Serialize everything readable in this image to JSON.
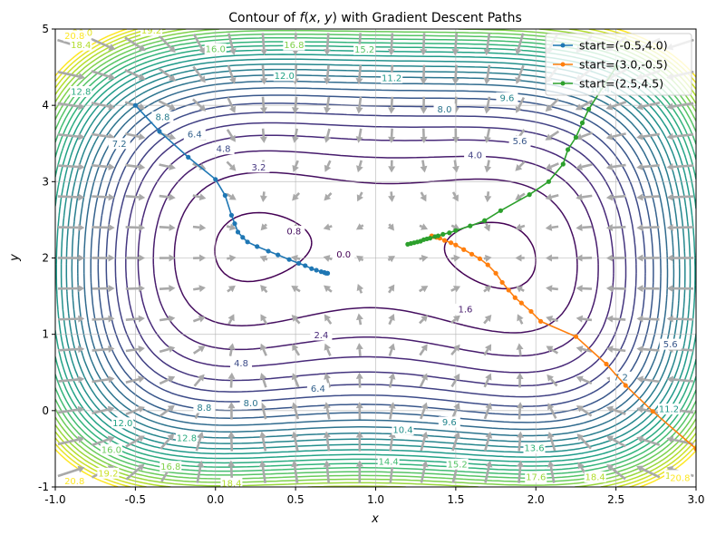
{
  "chart_data": {
    "type": "contour",
    "title": "Contour of f(x, y) with Gradient Descent Paths",
    "title_parts": [
      "Contour of ",
      "f",
      "(",
      "x",
      ", ",
      "y",
      ")",
      " with Gradient Descent Paths"
    ],
    "xlabel": "x",
    "ylabel": "y",
    "xlim": [
      -1.0,
      3.0
    ],
    "ylim": [
      -1.0,
      5.0
    ],
    "xticks": [
      -1.0,
      -0.5,
      0.0,
      0.5,
      1.0,
      1.5,
      2.0,
      2.5,
      3.0
    ],
    "yticks": [
      -1,
      0,
      1,
      2,
      3,
      4,
      5
    ],
    "xtick_labels": [
      "-1.0",
      "-0.5",
      "0.0",
      "0.5",
      "1.0",
      "1.5",
      "2.0",
      "2.5",
      "3.0"
    ],
    "ytick_labels": [
      "-1",
      "0",
      "1",
      "2",
      "3",
      "4",
      "5"
    ],
    "grid": true,
    "legend_position": "top-right",
    "contour_levels": [
      0.0,
      0.8,
      1.6,
      2.4,
      3.2,
      4.0,
      4.8,
      5.6,
      6.4,
      7.2,
      8.0,
      8.8,
      9.6,
      10.4,
      11.2,
      12.0,
      12.8,
      13.6,
      14.4,
      15.2,
      16.0,
      16.8,
      17.6,
      18.4,
      19.2,
      20.0,
      20.8
    ],
    "contour_labels": [
      {
        "text": "0.0",
        "x": 0.8,
        "y": 2.05
      },
      {
        "text": "0.8",
        "x": 0.49,
        "y": 2.35
      },
      {
        "text": "1.6",
        "x": 1.56,
        "y": 1.33
      },
      {
        "text": "2.4",
        "x": 0.66,
        "y": 0.99
      },
      {
        "text": "3.2",
        "x": 0.27,
        "y": 3.19
      },
      {
        "text": "4.0",
        "x": 1.62,
        "y": 3.35
      },
      {
        "text": "4.8",
        "x": 0.05,
        "y": 3.43
      },
      {
        "text": "4.8",
        "x": 0.16,
        "y": 0.62
      },
      {
        "text": "5.6",
        "x": 1.9,
        "y": 3.53
      },
      {
        "text": "5.6",
        "x": 2.84,
        "y": 0.87
      },
      {
        "text": "6.4",
        "x": -0.13,
        "y": 3.62
      },
      {
        "text": "6.4",
        "x": 0.64,
        "y": 0.29
      },
      {
        "text": "7.2",
        "x": -0.6,
        "y": 3.5
      },
      {
        "text": "7.2",
        "x": 2.53,
        "y": 0.44
      },
      {
        "text": "8.0",
        "x": 1.43,
        "y": 3.95
      },
      {
        "text": "8.0",
        "x": 0.22,
        "y": 0.1
      },
      {
        "text": "8.8",
        "x": -0.33,
        "y": 3.85
      },
      {
        "text": "8.8",
        "x": -0.07,
        "y": 0.04
      },
      {
        "text": "9.6",
        "x": 1.82,
        "y": 4.1
      },
      {
        "text": "9.6",
        "x": 1.46,
        "y": -0.15
      },
      {
        "text": "10.4",
        "x": 1.17,
        "y": -0.25
      },
      {
        "text": "10.4",
        "x": 2.4,
        "y": 4.21
      },
      {
        "text": "11.2",
        "x": 1.1,
        "y": 4.36
      },
      {
        "text": "11.2",
        "x": 2.83,
        "y": 0.02
      },
      {
        "text": "12.0",
        "x": 0.43,
        "y": 4.39
      },
      {
        "text": "12.0",
        "x": -0.58,
        "y": -0.16
      },
      {
        "text": "12.8",
        "x": -0.84,
        "y": 4.18
      },
      {
        "text": "12.8",
        "x": -0.18,
        "y": -0.36
      },
      {
        "text": "13.6",
        "x": 1.99,
        "y": -0.49
      },
      {
        "text": "14.4",
        "x": 1.08,
        "y": -0.67
      },
      {
        "text": "15.2",
        "x": 0.93,
        "y": 4.73
      },
      {
        "text": "15.2",
        "x": 1.51,
        "y": -0.7
      },
      {
        "text": "16.0",
        "x": 0.0,
        "y": 4.74
      },
      {
        "text": "16.0",
        "x": -0.65,
        "y": -0.51
      },
      {
        "text": "16.8",
        "x": 0.49,
        "y": 4.79
      },
      {
        "text": "16.8",
        "x": -0.28,
        "y": -0.73
      },
      {
        "text": "17.6",
        "x": 2.0,
        "y": -0.87
      },
      {
        "text": "18.4",
        "x": -0.84,
        "y": 4.79
      },
      {
        "text": "18.4",
        "x": 2.37,
        "y": -0.87
      },
      {
        "text": "18.4",
        "x": 0.1,
        "y": -0.95
      },
      {
        "text": "19.2",
        "x": -0.4,
        "y": 4.98
      },
      {
        "text": "19.2",
        "x": -0.67,
        "y": -0.82
      },
      {
        "text": "19.2",
        "x": 2.87,
        "y": -0.85
      },
      {
        "text": "20.0",
        "x": -0.83,
        "y": 4.95
      },
      {
        "text": "20.8",
        "x": -0.88,
        "y": 4.91
      },
      {
        "text": "20.8",
        "x": -0.88,
        "y": -0.92
      },
      {
        "text": "20.8",
        "x": 2.9,
        "y": -0.88
      }
    ],
    "series": [
      {
        "name": "start=(-0.5,4.0)",
        "color": "#1f77b4",
        "points": [
          [
            -0.5,
            4.0
          ],
          [
            -0.35,
            3.66
          ],
          [
            -0.17,
            3.32
          ],
          [
            0.0,
            3.03
          ],
          [
            0.06,
            2.82
          ],
          [
            0.1,
            2.56
          ],
          [
            0.12,
            2.45
          ],
          [
            0.14,
            2.34
          ],
          [
            0.17,
            2.27
          ],
          [
            0.2,
            2.21
          ],
          [
            0.26,
            2.15
          ],
          [
            0.33,
            2.09
          ],
          [
            0.39,
            2.04
          ],
          [
            0.46,
            1.98
          ],
          [
            0.52,
            1.93
          ],
          [
            0.56,
            1.9
          ],
          [
            0.6,
            1.86
          ],
          [
            0.63,
            1.84
          ],
          [
            0.66,
            1.82
          ],
          [
            0.68,
            1.81
          ],
          [
            0.69,
            1.8
          ],
          [
            0.7,
            1.8
          ],
          [
            0.7,
            1.8
          ]
        ]
      },
      {
        "name": "start=(3.0,-0.5)",
        "color": "#ff7f0e",
        "points": [
          [
            3.0,
            -0.5
          ],
          [
            2.73,
            -0.01
          ],
          [
            2.56,
            0.33
          ],
          [
            2.44,
            0.61
          ],
          [
            2.25,
            0.97
          ],
          [
            2.03,
            1.17
          ],
          [
            1.97,
            1.3
          ],
          [
            1.91,
            1.41
          ],
          [
            1.87,
            1.48
          ],
          [
            1.83,
            1.58
          ],
          [
            1.79,
            1.68
          ],
          [
            1.75,
            1.8
          ],
          [
            1.7,
            1.91
          ],
          [
            1.65,
            1.99
          ],
          [
            1.6,
            2.05
          ],
          [
            1.55,
            2.11
          ],
          [
            1.5,
            2.17
          ],
          [
            1.47,
            2.2
          ],
          [
            1.43,
            2.23
          ],
          [
            1.4,
            2.26
          ],
          [
            1.38,
            2.27
          ],
          [
            1.36,
            2.28
          ],
          [
            1.35,
            2.29
          ]
        ]
      },
      {
        "name": "start=(2.5,4.5)",
        "color": "#2ca02c",
        "points": [
          [
            2.5,
            4.5
          ],
          [
            2.33,
            3.95
          ],
          [
            2.29,
            3.77
          ],
          [
            2.25,
            3.58
          ],
          [
            2.2,
            3.42
          ],
          [
            2.17,
            3.23
          ],
          [
            2.08,
            3.0
          ],
          [
            1.96,
            2.83
          ],
          [
            1.78,
            2.62
          ],
          [
            1.68,
            2.49
          ],
          [
            1.59,
            2.42
          ],
          [
            1.5,
            2.36
          ],
          [
            1.46,
            2.33
          ],
          [
            1.42,
            2.31
          ],
          [
            1.39,
            2.29
          ],
          [
            1.37,
            2.28
          ],
          [
            1.34,
            2.26
          ],
          [
            1.32,
            2.25
          ],
          [
            1.3,
            2.24
          ],
          [
            1.28,
            2.22
          ],
          [
            1.26,
            2.21
          ],
          [
            1.24,
            2.2
          ],
          [
            1.22,
            2.19
          ],
          [
            1.2,
            2.18
          ]
        ]
      }
    ]
  }
}
